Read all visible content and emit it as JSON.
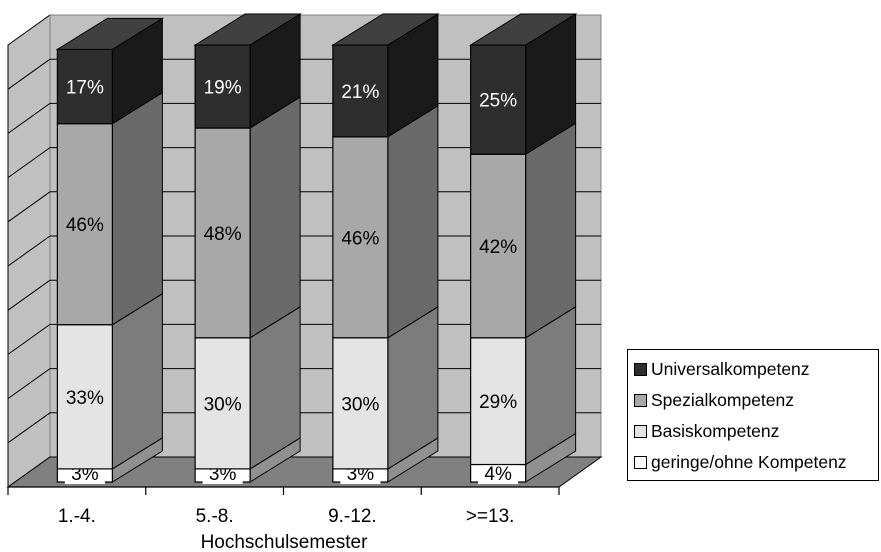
{
  "chart_data": {
    "type": "bar",
    "stacked": "100%",
    "three_d": true,
    "categories": [
      "1.-4.",
      "5.-8.",
      "9.-12.",
      ">=13."
    ],
    "xlabel": "Hochschulsemester",
    "series": [
      {
        "name": "geringe/ohne Kompetenz",
        "values": [
          3,
          3,
          3,
          4
        ],
        "labels": [
          "3%",
          "3%",
          "3%",
          "4%"
        ],
        "color": "#ffffff"
      },
      {
        "name": "Basiskompetenz",
        "values": [
          33,
          30,
          30,
          29
        ],
        "labels": [
          "33%",
          "30%",
          "30%",
          "29%"
        ],
        "color": "#e4e4e4"
      },
      {
        "name": "Spezialkompetenz",
        "values": [
          46,
          48,
          46,
          42
        ],
        "labels": [
          "46%",
          "48%",
          "46%",
          "42%"
        ],
        "color": "#a8a8a8"
      },
      {
        "name": "Universalkompetenz",
        "values": [
          17,
          19,
          21,
          25
        ],
        "labels": [
          "17%",
          "19%",
          "21%",
          "25%"
        ],
        "color": "#2e2e2e"
      }
    ],
    "legend_position": "right",
    "legend_order": [
      "Universalkompetenz",
      "Spezialkompetenz",
      "Basiskompetenz",
      "geringe/ohne Kompetenz"
    ],
    "gridlines": true,
    "wall_color": "#c0c0c0",
    "floor_color": "#808080"
  }
}
